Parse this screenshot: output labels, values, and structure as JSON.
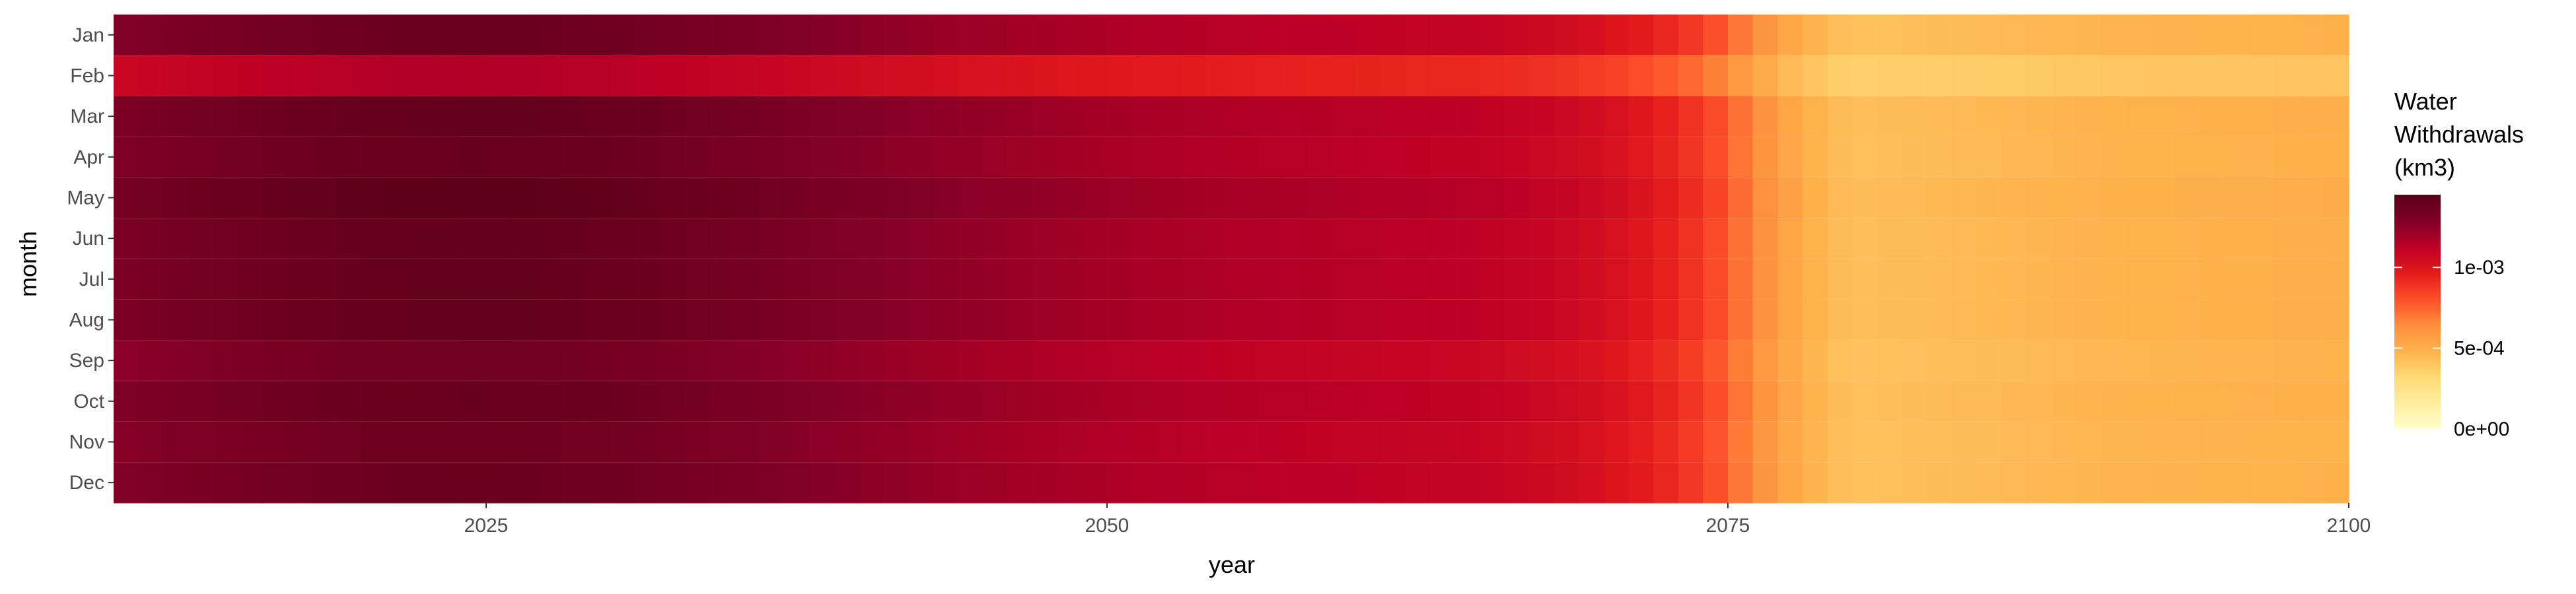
{
  "chart_data": {
    "type": "heatmap",
    "xlabel": "year",
    "ylabel": "month",
    "x_range": [
      2010,
      2100
    ],
    "x_ticks": [
      2025,
      2050,
      2075,
      2100
    ],
    "y_categories": [
      "Jan",
      "Feb",
      "Mar",
      "Apr",
      "May",
      "Jun",
      "Jul",
      "Aug",
      "Sep",
      "Oct",
      "Nov",
      "Dec"
    ],
    "legend": {
      "title_lines": [
        "Water",
        "Withdrawals",
        "(km3)"
      ],
      "tick_labels": [
        "1e-03",
        "5e-04",
        "0e+00"
      ],
      "tick_values": [
        0.001,
        0.0005,
        0
      ],
      "range": [
        0,
        0.00145
      ],
      "placement": "right",
      "colors": [
        "#ffffcc",
        "#ffeda0",
        "#fed976",
        "#feb24c",
        "#fd8d3c",
        "#fc4e2a",
        "#e31a1c",
        "#bd0026",
        "#800026",
        "#5a0019"
      ]
    },
    "year_profile": {
      "years": [
        2010,
        2015,
        2020,
        2025,
        2030,
        2035,
        2040,
        2045,
        2050,
        2055,
        2060,
        2065,
        2068,
        2070,
        2072,
        2074,
        2075,
        2076,
        2077,
        2078,
        2079,
        2080,
        2090,
        2100
      ],
      "values": [
        0.00128,
        0.00133,
        0.00137,
        0.00138,
        0.00136,
        0.00131,
        0.00126,
        0.00121,
        0.00117,
        0.00114,
        0.00112,
        0.0011,
        0.00106,
        0.00102,
        0.00095,
        0.00085,
        0.00075,
        0.00065,
        0.00056,
        0.0005,
        0.00045,
        0.00042,
        0.00047,
        0.00049
      ]
    },
    "month_scale": [
      1.0,
      0.84,
      1.02,
      1.01,
      1.04,
      1.02,
      1.02,
      1.02,
      0.98,
      1.01,
      0.99,
      1.0
    ]
  }
}
